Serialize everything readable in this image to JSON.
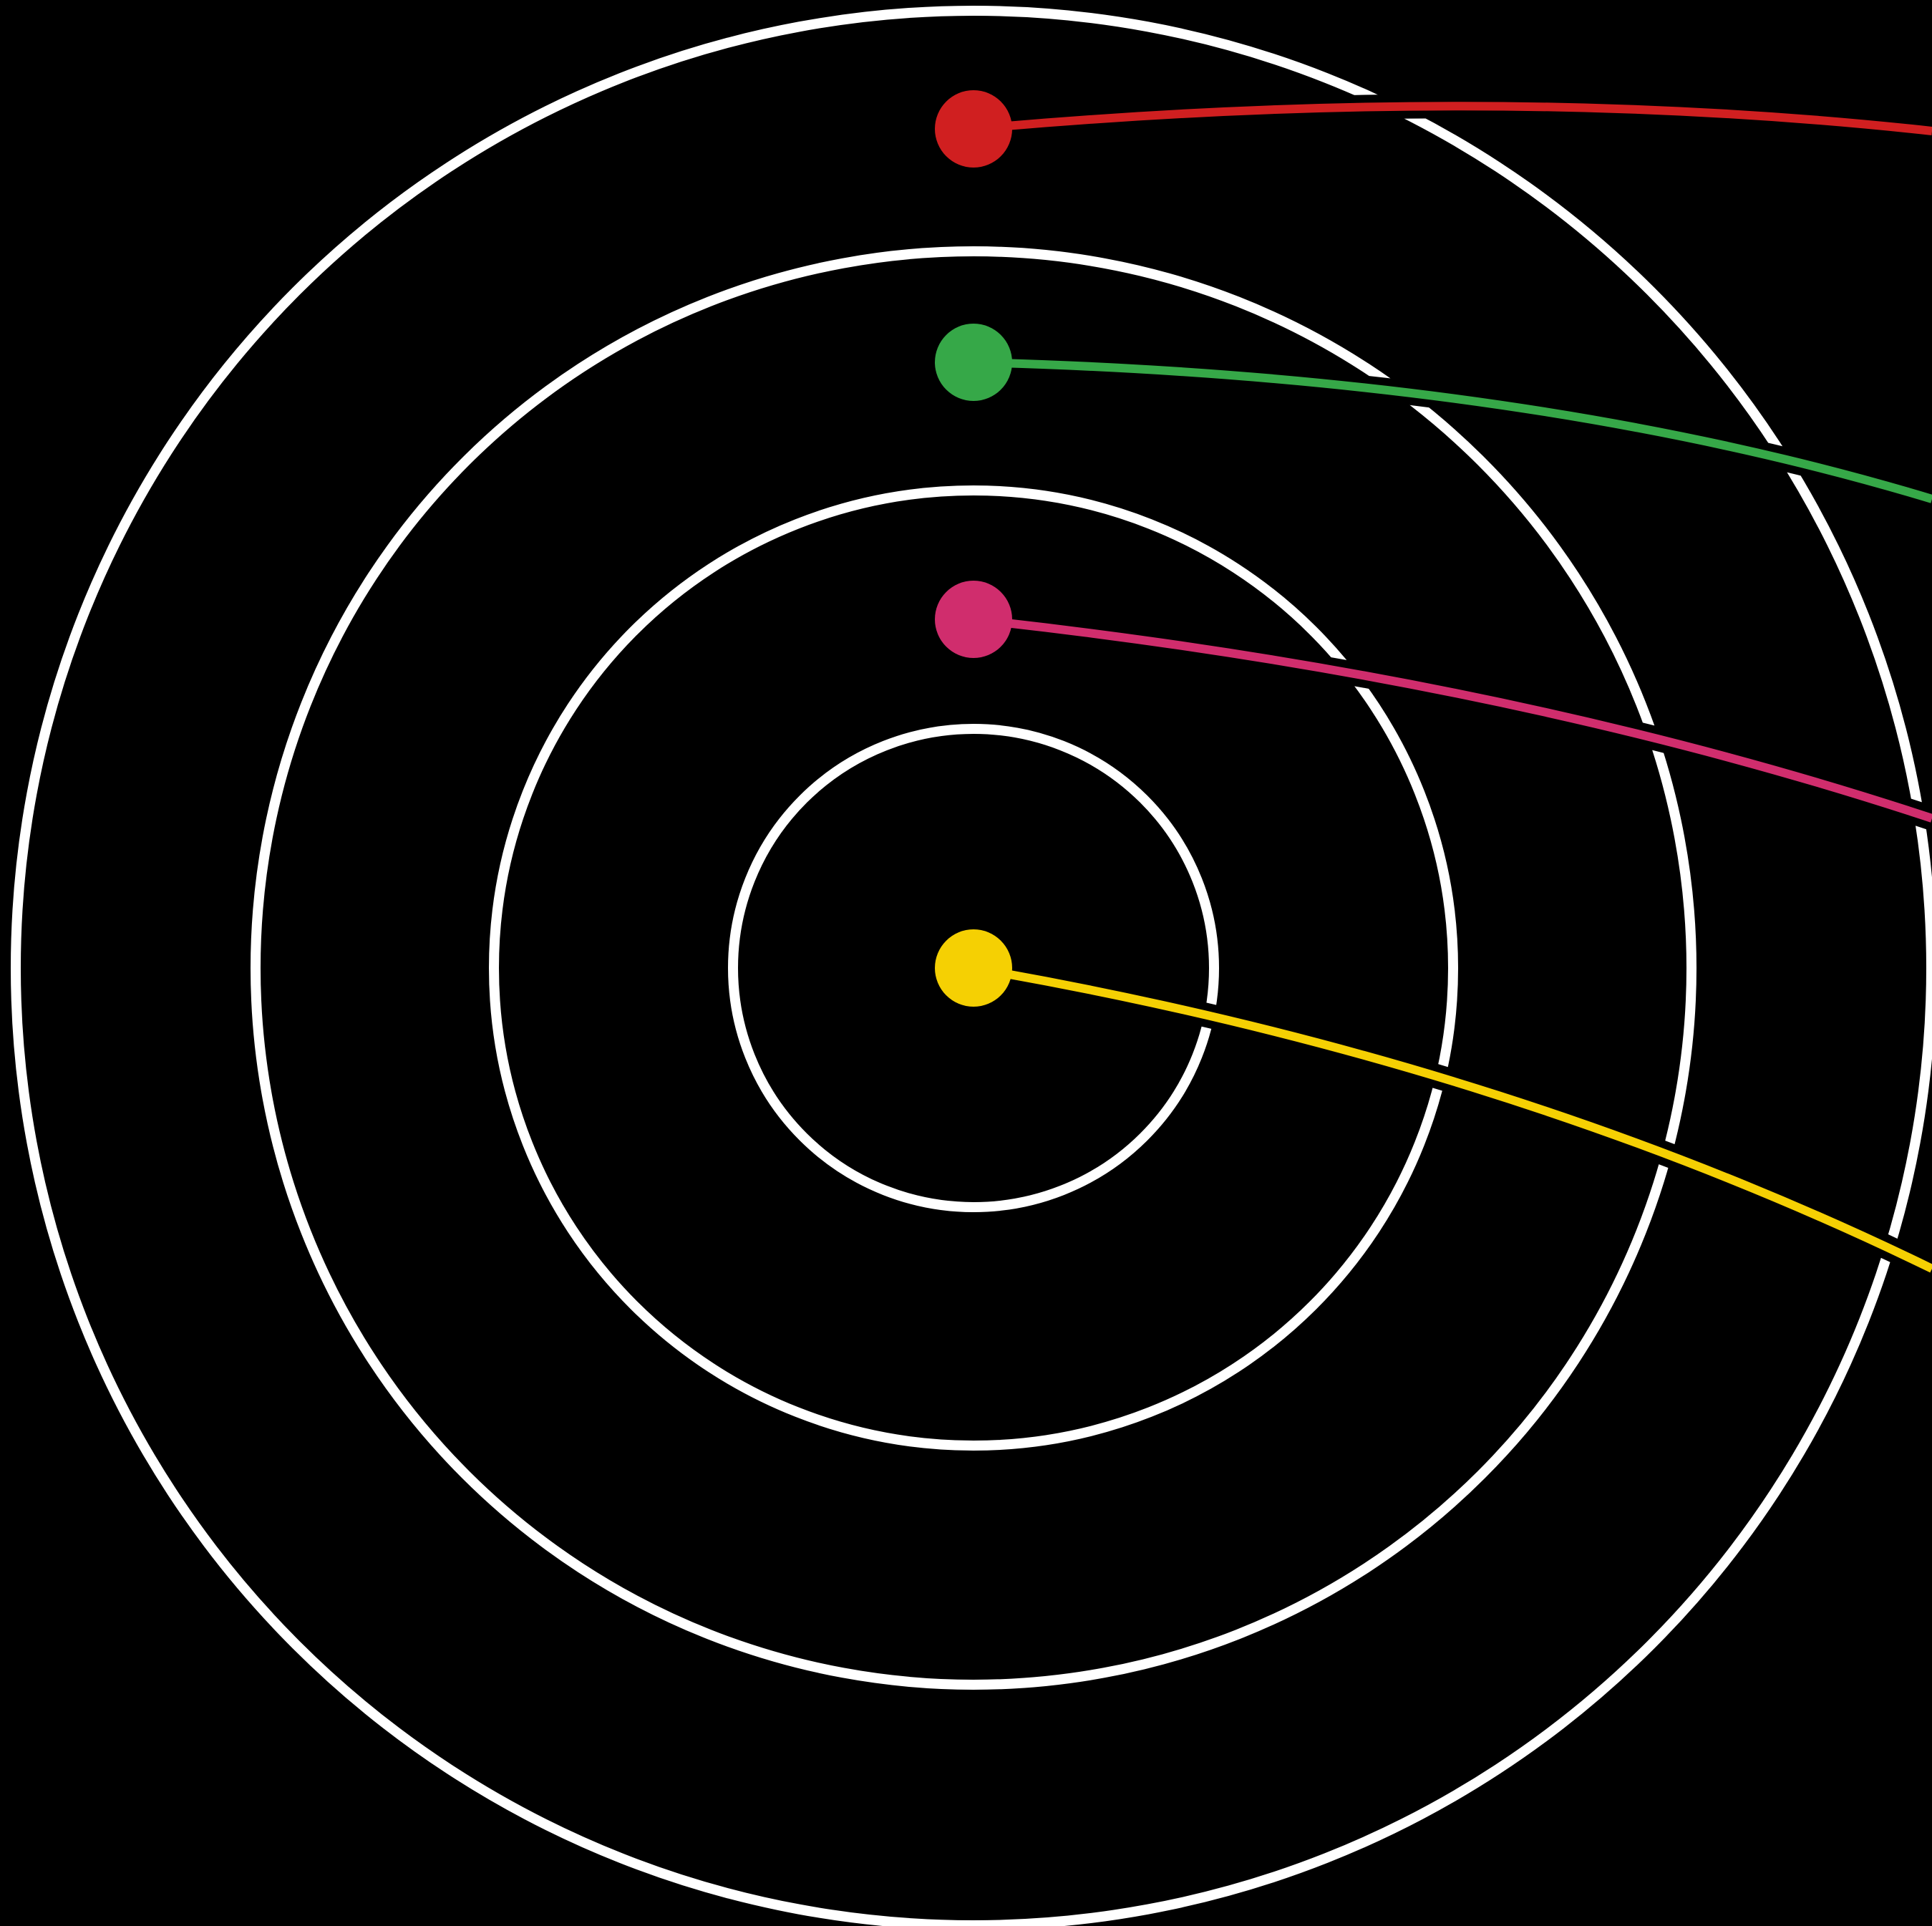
{
  "diagram": {
    "background_color": "#000000",
    "ring_color": "#ffffff",
    "ring_count": 4,
    "markers": [
      {
        "id": "red",
        "color": "#d01f20"
      },
      {
        "id": "green",
        "color": "#36a848"
      },
      {
        "id": "magenta",
        "color": "#d02d6d"
      },
      {
        "id": "yellow",
        "color": "#f5d003"
      }
    ]
  }
}
